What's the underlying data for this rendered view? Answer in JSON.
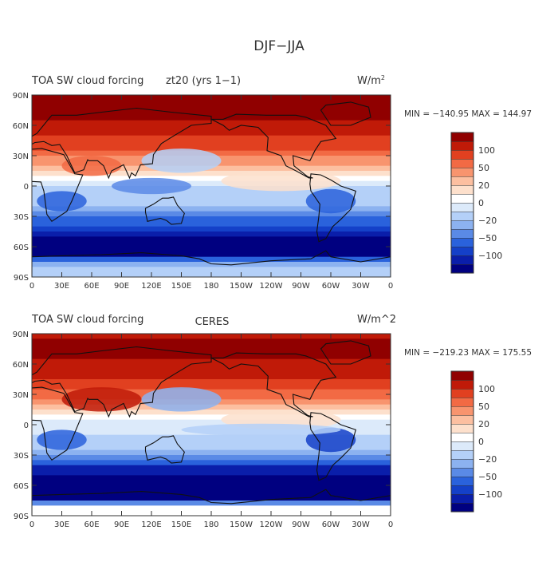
{
  "figure_title": "DJF−JJA",
  "colors": {
    "palette": [
      "#000080",
      "#0a1eaa",
      "#1440c8",
      "#2a62dc",
      "#5a8ae6",
      "#8cb2f0",
      "#b4d0f8",
      "#dceafa",
      "#ffffff",
      "#fde0cc",
      "#fcbfa0",
      "#f8946e",
      "#f26a44",
      "#e14020",
      "#c01a08",
      "#900000"
    ],
    "land_line": "#111111",
    "frame": "#333333"
  },
  "chart_data": [
    {
      "type": "heatmap",
      "panel_title": "TOA SW cloud forcing",
      "case_name": "zt20 (yrs 1−1)",
      "units_base": "W/m",
      "units_exponent": "2",
      "stats": "MIN = −140.95  MAX = 144.97",
      "x_ticks": [
        "0",
        "30E",
        "60E",
        "90E",
        "120E",
        "150E",
        "180",
        "150W",
        "120W",
        "90W",
        "60W",
        "30W",
        "0"
      ],
      "y_ticks": [
        "90N",
        "60N",
        "30N",
        "0",
        "30S",
        "60S",
        "90S"
      ],
      "xlim": [
        0,
        360
      ],
      "ylim": [
        -90,
        90
      ],
      "contour_levels": [
        -120,
        -100,
        -80,
        -60,
        -50,
        -40,
        -30,
        -20,
        -10,
        0,
        10,
        20,
        30,
        40,
        50,
        60,
        80,
        100,
        120
      ],
      "colorbar_labels": [
        "100",
        "50",
        "20",
        "0",
        "−20",
        "−50",
        "−100"
      ],
      "zonal_profile": [
        [
          -90,
          -10
        ],
        [
          -75,
          -25
        ],
        [
          -65,
          -110
        ],
        [
          -55,
          -90
        ],
        [
          -45,
          -60
        ],
        [
          -35,
          -45
        ],
        [
          -20,
          -20
        ],
        [
          -10,
          -15
        ],
        [
          0,
          -10
        ],
        [
          10,
          15
        ],
        [
          20,
          30
        ],
        [
          35,
          50
        ],
        [
          50,
          60
        ],
        [
          65,
          80
        ],
        [
          80,
          90
        ],
        [
          90,
          90
        ]
      ]
    },
    {
      "type": "heatmap",
      "panel_title": "TOA SW cloud forcing",
      "case_name": "CERES",
      "units_base": "W/m^2",
      "units_exponent": "",
      "stats": "MIN = −219.23  MAX = 175.55",
      "x_ticks": [
        "0",
        "30E",
        "60E",
        "90E",
        "120E",
        "150E",
        "180",
        "150W",
        "120W",
        "90W",
        "60W",
        "30W",
        "0"
      ],
      "y_ticks": [
        "90N",
        "60N",
        "30N",
        "0",
        "30S",
        "60S",
        "90S"
      ],
      "xlim": [
        0,
        360
      ],
      "ylim": [
        -90,
        90
      ],
      "contour_levels": [
        -120,
        -100,
        -80,
        -60,
        -50,
        -40,
        -30,
        -20,
        -10,
        0,
        10,
        20,
        30,
        40,
        50,
        60,
        80,
        100,
        120
      ],
      "colorbar_labels": [
        "100",
        "50",
        "20",
        "0",
        "−20",
        "−50",
        "−100"
      ],
      "zonal_profile": [
        [
          -90,
          10
        ],
        [
          -80,
          10
        ],
        [
          -72,
          -120
        ],
        [
          -60,
          -130
        ],
        [
          -50,
          -80
        ],
        [
          -40,
          -55
        ],
        [
          -25,
          -20
        ],
        [
          -10,
          -10
        ],
        [
          0,
          -5
        ],
        [
          10,
          15
        ],
        [
          25,
          40
        ],
        [
          40,
          55
        ],
        [
          55,
          70
        ],
        [
          70,
          90
        ],
        [
          85,
          100
        ],
        [
          90,
          60
        ]
      ]
    }
  ]
}
